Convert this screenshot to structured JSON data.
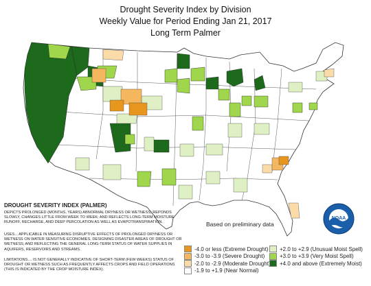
{
  "title": {
    "line1": "Drought Severity Index by Division",
    "line2": "Weekly Value for Period Ending Jan 21, 2017",
    "line3": "Long Term Palmer"
  },
  "note": "Based on preliminary data",
  "dsi": {
    "heading": "DROUGHT SEVERITY INDEX (PALMER)",
    "p1": "DEPICTS PROLONGED (MONTHS, YEARS) ABNORMAL DRYNESS OR WETNESS; REPONDS SLOWLY, CHANGES LITTLE FROM WEEK TO WEEK; AND REFLECTS LONG-TERM MOISTURE RUNOFF, RECHARGE, AND DEEP PERCOLATION AS WELL AS EVAPOTRANSPIRATION.",
    "p2": "USES... APPLICABLE IN MEASURING DISRUPTIVE EFFECTS OF PROLONGED DRYNESS OR WETNESS ON WATER SENSITIVE ECONOMIES, DESIGNING DISASTER AREAS OF DROUGHT OR WETNESS; AND REFLECTING THE GENERAL LONG-TERM STATUS OF WATER SUPPLIES IN AQUIFERS, RESERVOIRS AND STREAMS.",
    "p3": "LIMITATIONS.... IS NOT GENERALLY INDICATIVE OF SHORT-TERM (FEW WEEKS) STATUS OF DROUGHT OR WETNESS SUCH AS FREQUENTLY AFFECTS CROPS AND FIELD OPERATIONS (THIS IS INDICATED BY THE CROP MOISTURE INDEX)."
  },
  "legend": {
    "left": [
      {
        "label": "-4.0 or less (Extreme Drought)",
        "color": "#e8961e"
      },
      {
        "label": "-3.0 to -3.9 (Severe Drought)",
        "color": "#f4b760"
      },
      {
        "label": "-2.0 to -2.9 (Moderate Drought)",
        "color": "#fbdca8"
      },
      {
        "label": "-1.9 to +1.9 (Near Normal)",
        "color": "#ffffff"
      }
    ],
    "right": [
      {
        "label": "+2.0 to +2.9 (Unusual Moist Spell)",
        "color": "#dff0c4"
      },
      {
        "label": "+3.0 to +3.9 (Very Moist Spell)",
        "color": "#9fd64c"
      },
      {
        "label": "+4.0 and above (Extremely Moist)",
        "color": "#1d6a1d"
      }
    ]
  },
  "logo": {
    "text": "NOAA",
    "icon": "noaa-logo"
  },
  "map_classes": {
    "extremely_moist": "#1d6a1d",
    "very_moist": "#9fd64c",
    "unusual_moist": "#dff0c4",
    "moderate_drought": "#fbdca8",
    "severe_drought": "#f4b760",
    "extreme_drought": "#e8961e",
    "near_normal": "#ffffff"
  }
}
